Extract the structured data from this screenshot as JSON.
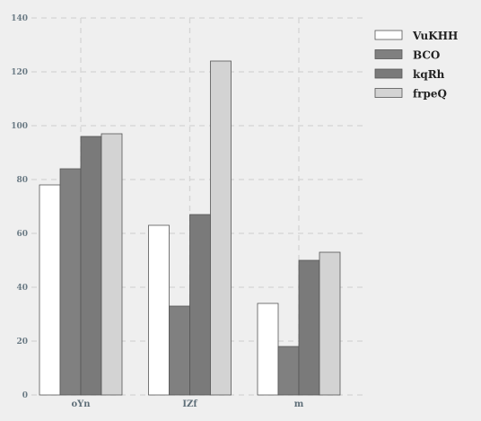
{
  "chart_data": {
    "type": "bar",
    "categories": [
      "oYn",
      "IZf",
      "m"
    ],
    "series": [
      {
        "name": "VuKHH",
        "values": [
          78,
          63,
          34
        ],
        "color": "#ffffff"
      },
      {
        "name": "BCO",
        "values": [
          84,
          33,
          18
        ],
        "color": "#808080"
      },
      {
        "name": "kqRh",
        "values": [
          96,
          67,
          50
        ],
        "color": "#7a7a7a"
      },
      {
        "name": "frpeQ",
        "values": [
          97,
          124,
          53
        ],
        "color": "#d3d3d3"
      }
    ],
    "title": "",
    "xlabel": "",
    "ylabel": "",
    "ylim": [
      0,
      140
    ],
    "yticks": [
      0,
      20,
      40,
      60,
      80,
      100,
      120,
      140
    ],
    "grid": true,
    "legend": "top-right",
    "bar_edge_color": "#555555",
    "background": "#efefef"
  }
}
